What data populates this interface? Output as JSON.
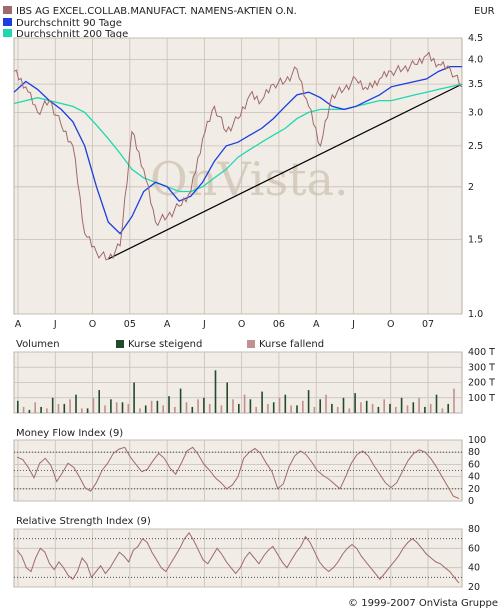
{
  "header": {
    "currency": "EUR",
    "copyright": "© 1999-2007 OnVista Gruppe",
    "watermark": "OnVista."
  },
  "colors": {
    "panel_bg": "#f1ece6",
    "grid": "#c8c0b8",
    "price": "#a06a6a",
    "ma90": "#1a3ee0",
    "ma200": "#1ed8b0",
    "trend": "#000000",
    "vol_up": "#234a2a",
    "vol_down": "#c09090",
    "indicator": "#a06a6a",
    "copyright": "#a05050"
  },
  "chart_data": [
    {
      "type": "line",
      "id": "price",
      "y_scale": "log",
      "ylim": [
        1.0,
        4.5
      ],
      "yticks": [
        1.0,
        1.5,
        2.0,
        2.5,
        3.0,
        3.5,
        4.0,
        4.5
      ],
      "ytick_labels": [
        "1.0",
        "1.5",
        "2",
        "2.5",
        "3.0",
        "3.5",
        "4.0",
        "4.5"
      ],
      "x_ticks": [
        "A",
        "J",
        "O",
        "05",
        "A",
        "J",
        "O",
        "06",
        "A",
        "J",
        "O",
        "07"
      ],
      "x_range": [
        "2004-04",
        "2007-06"
      ],
      "legend_position": "top-left",
      "series": [
        {
          "name": "IBS AG EXCEL.COLLAB.MANUFACT. NAMENS-AKTIEN O.N.",
          "color": "#a06a6a",
          "x": [
            "2004-04",
            "2004-05",
            "2004-06",
            "2004-07",
            "2004-08",
            "2004-09",
            "2004-10",
            "2004-11",
            "2004-12",
            "2005-01",
            "2005-02",
            "2005-03",
            "2005-04",
            "2005-05",
            "2005-06",
            "2005-07",
            "2005-08",
            "2005-09",
            "2005-10",
            "2005-11",
            "2005-12",
            "2006-01",
            "2006-02",
            "2006-03",
            "2006-04",
            "2006-05",
            "2006-06",
            "2006-07",
            "2006-08",
            "2006-09",
            "2006-10",
            "2006-11",
            "2006-12",
            "2007-01",
            "2007-02",
            "2007-03",
            "2007-04",
            "2007-05",
            "2007-06"
          ],
          "values": [
            3.75,
            3.45,
            3.0,
            3.2,
            2.8,
            2.5,
            1.55,
            1.4,
            1.35,
            1.45,
            2.7,
            2.2,
            1.65,
            1.7,
            1.8,
            1.95,
            2.6,
            3.1,
            2.7,
            2.9,
            3.3,
            3.2,
            3.5,
            3.55,
            3.8,
            3.1,
            2.5,
            3.3,
            3.4,
            3.6,
            3.4,
            3.6,
            3.75,
            3.8,
            3.9,
            4.1,
            3.9,
            3.8,
            3.45
          ]
        },
        {
          "name": "Durchschnitt 90 Tage",
          "color": "#1a3ee0",
          "x": [
            "2004-04",
            "2004-05",
            "2004-06",
            "2004-07",
            "2004-08",
            "2004-09",
            "2004-10",
            "2004-11",
            "2004-12",
            "2005-01",
            "2005-02",
            "2005-03",
            "2005-04",
            "2005-05",
            "2005-06",
            "2005-07",
            "2005-08",
            "2005-09",
            "2005-10",
            "2005-11",
            "2005-12",
            "2006-01",
            "2006-02",
            "2006-03",
            "2006-04",
            "2006-05",
            "2006-06",
            "2006-07",
            "2006-08",
            "2006-09",
            "2006-10",
            "2006-11",
            "2006-12",
            "2007-01",
            "2007-02",
            "2007-03",
            "2007-04",
            "2007-05",
            "2007-06"
          ],
          "values": [
            3.35,
            3.55,
            3.4,
            3.2,
            3.05,
            2.85,
            2.5,
            2.0,
            1.65,
            1.55,
            1.7,
            1.95,
            2.05,
            2.0,
            1.85,
            1.9,
            2.05,
            2.3,
            2.5,
            2.55,
            2.65,
            2.75,
            2.9,
            3.1,
            3.3,
            3.35,
            3.25,
            3.1,
            3.05,
            3.1,
            3.2,
            3.3,
            3.45,
            3.5,
            3.55,
            3.6,
            3.75,
            3.85,
            3.85
          ]
        },
        {
          "name": "Durchschnitt 200 Tage",
          "color": "#1ed8b0",
          "x": [
            "2004-04",
            "2004-05",
            "2004-06",
            "2004-07",
            "2004-08",
            "2004-09",
            "2004-10",
            "2004-11",
            "2004-12",
            "2005-01",
            "2005-02",
            "2005-03",
            "2005-04",
            "2005-05",
            "2005-06",
            "2005-07",
            "2005-08",
            "2005-09",
            "2005-10",
            "2005-11",
            "2005-12",
            "2006-01",
            "2006-02",
            "2006-03",
            "2006-04",
            "2006-05",
            "2006-06",
            "2006-07",
            "2006-08",
            "2006-09",
            "2006-10",
            "2006-11",
            "2006-12",
            "2007-01",
            "2007-02",
            "2007-03",
            "2007-04",
            "2007-05",
            "2007-06"
          ],
          "values": [
            3.15,
            3.2,
            3.25,
            3.2,
            3.15,
            3.1,
            3.0,
            2.8,
            2.6,
            2.4,
            2.2,
            2.1,
            2.05,
            2.0,
            1.95,
            1.95,
            2.0,
            2.1,
            2.2,
            2.35,
            2.45,
            2.55,
            2.65,
            2.75,
            2.9,
            3.0,
            3.05,
            3.05,
            3.05,
            3.1,
            3.15,
            3.2,
            3.2,
            3.25,
            3.3,
            3.35,
            3.4,
            3.45,
            3.5
          ]
        }
      ],
      "trendline": {
        "x": [
          "2004-12",
          "2007-06"
        ],
        "values": [
          1.35,
          3.5
        ]
      }
    },
    {
      "type": "bar",
      "id": "volume",
      "title": "Volumen",
      "ylim": [
        0,
        400
      ],
      "yticks": [
        100,
        200,
        300,
        400
      ],
      "ytick_labels": [
        "100 T",
        "200 T",
        "300 T",
        "400 T"
      ],
      "series": [
        {
          "name": "Kurse steigend",
          "color": "#234a2a",
          "values": [
            80,
            20,
            40,
            100,
            60,
            120,
            30,
            150,
            90,
            70,
            200,
            50,
            80,
            110,
            160,
            40,
            100,
            280,
            200,
            60,
            90,
            140,
            70,
            120,
            50,
            150,
            90,
            60,
            100,
            130,
            80,
            40,
            60,
            100,
            70,
            40,
            120,
            60
          ]
        },
        {
          "name": "Kurse fallend",
          "color": "#c09090",
          "values": [
            40,
            70,
            30,
            60,
            90,
            30,
            100,
            50,
            70,
            60,
            30,
            80,
            50,
            40,
            70,
            90,
            60,
            50,
            90,
            120,
            40,
            60,
            100,
            50,
            80,
            40,
            120,
            40,
            30,
            70,
            60,
            90,
            40,
            50,
            100,
            60,
            30,
            160
          ]
        }
      ]
    },
    {
      "type": "line",
      "id": "mfi",
      "title": "Money Flow Index (9)",
      "ylim": [
        0,
        100
      ],
      "yticks": [
        0,
        20,
        40,
        60,
        80,
        100
      ],
      "ytick_labels": [
        "0",
        "20",
        "40",
        "60",
        "80",
        "100"
      ],
      "reference_lines": [
        20,
        50,
        80
      ],
      "values": [
        72,
        68,
        55,
        38,
        62,
        70,
        58,
        32,
        46,
        62,
        55,
        40,
        22,
        16,
        30,
        50,
        62,
        78,
        85,
        88,
        72,
        60,
        48,
        52,
        66,
        78,
        70,
        54,
        44,
        62,
        82,
        88,
        76,
        60,
        50,
        38,
        30,
        20,
        26,
        40,
        70,
        80,
        86,
        78,
        62,
        48,
        20,
        28,
        56,
        74,
        82,
        76,
        64,
        50,
        42,
        36,
        28,
        20,
        40,
        62,
        76,
        82,
        74,
        58,
        44,
        30,
        22,
        30,
        48,
        66,
        78,
        84,
        80,
        70,
        56,
        40,
        24,
        8,
        4
      ]
    },
    {
      "type": "line",
      "id": "rsi",
      "title": "Relative Strength Index (9)",
      "ylim": [
        20,
        80
      ],
      "yticks": [
        20,
        40,
        60,
        80
      ],
      "ytick_labels": [
        "20",
        "40",
        "60",
        "80"
      ],
      "reference_lines": [
        30,
        70
      ],
      "values": [
        58,
        52,
        40,
        36,
        50,
        60,
        56,
        44,
        38,
        46,
        40,
        32,
        28,
        36,
        50,
        44,
        30,
        36,
        42,
        34,
        40,
        48,
        56,
        52,
        46,
        58,
        62,
        70,
        66,
        56,
        48,
        40,
        36,
        44,
        52,
        60,
        70,
        76,
        68,
        58,
        48,
        44,
        52,
        60,
        54,
        46,
        40,
        34,
        40,
        50,
        56,
        50,
        44,
        52,
        58,
        62,
        54,
        46,
        40,
        48,
        56,
        62,
        72,
        66,
        56,
        46,
        40,
        36,
        40,
        46,
        54,
        60,
        64,
        60,
        52,
        46,
        40,
        34,
        28,
        34,
        40,
        46,
        52,
        60,
        66,
        70,
        66,
        60,
        54,
        50,
        46,
        44,
        40,
        36,
        30,
        24
      ]
    }
  ]
}
